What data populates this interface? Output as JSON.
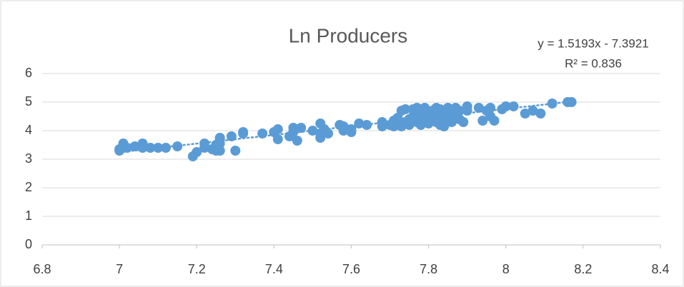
{
  "chart_data": {
    "type": "scatter",
    "title": "Ln Producers",
    "color": "#5b9bd5",
    "grid": true,
    "xlim": [
      6.8,
      8.4
    ],
    "xticks": [
      6.8,
      7,
      7.2,
      7.4,
      7.6,
      7.8,
      8,
      8.2,
      8.4
    ],
    "ylim": [
      0,
      6
    ],
    "yticks": [
      0,
      1,
      2,
      3,
      4,
      5,
      6
    ],
    "trendline": {
      "slope": 1.5193,
      "intercept": -7.3921,
      "label": "y = 1.5193x - 7.3921",
      "r2_label": "R² = 0.836"
    },
    "x": [
      7.0,
      7.0,
      7.01,
      7.01,
      7.02,
      7.04,
      7.06,
      7.06,
      7.08,
      7.1,
      7.12,
      7.15,
      7.19,
      7.2,
      7.22,
      7.22,
      7.24,
      7.25,
      7.25,
      7.26,
      7.26,
      7.26,
      7.26,
      7.29,
      7.3,
      7.32,
      7.32,
      7.37,
      7.4,
      7.41,
      7.41,
      7.44,
      7.45,
      7.45,
      7.46,
      7.47,
      7.5,
      7.52,
      7.52,
      7.52,
      7.53,
      7.54,
      7.57,
      7.58,
      7.58,
      7.6,
      7.6,
      7.62,
      7.64,
      7.68,
      7.68,
      7.7,
      7.71,
      7.71,
      7.72,
      7.72,
      7.73,
      7.73,
      7.74,
      7.74,
      7.75,
      7.75,
      7.76,
      7.76,
      7.77,
      7.77,
      7.77,
      7.78,
      7.78,
      7.78,
      7.79,
      7.79,
      7.79,
      7.8,
      7.8,
      7.81,
      7.81,
      7.82,
      7.82,
      7.83,
      7.83,
      7.83,
      7.84,
      7.84,
      7.85,
      7.85,
      7.86,
      7.86,
      7.87,
      7.87,
      7.88,
      7.88,
      7.89,
      7.9,
      7.9,
      7.93,
      7.94,
      7.95,
      7.96,
      7.96,
      7.97,
      7.99,
      8.0,
      8.02,
      8.05,
      8.07,
      8.09,
      8.12,
      8.16,
      8.17
    ],
    "values": [
      3.3,
      3.35,
      3.55,
      3.45,
      3.4,
      3.45,
      3.4,
      3.55,
      3.4,
      3.4,
      3.4,
      3.45,
      3.1,
      3.25,
      3.55,
      3.4,
      3.35,
      3.3,
      3.5,
      3.7,
      3.75,
      3.3,
      3.55,
      3.8,
      3.3,
      3.9,
      3.95,
      3.9,
      3.95,
      4.05,
      3.7,
      3.8,
      4.1,
      3.95,
      3.65,
      4.1,
      4.0,
      3.9,
      3.75,
      4.25,
      4.05,
      3.9,
      4.2,
      4.0,
      4.15,
      3.95,
      4.05,
      4.25,
      4.2,
      4.15,
      4.3,
      4.2,
      4.35,
      4.15,
      4.25,
      4.45,
      4.7,
      4.15,
      4.75,
      4.3,
      4.2,
      4.4,
      4.5,
      4.75,
      4.3,
      4.6,
      4.8,
      4.2,
      4.5,
      4.7,
      4.35,
      4.65,
      4.8,
      4.25,
      4.5,
      4.7,
      4.4,
      4.3,
      4.8,
      4.6,
      4.2,
      4.75,
      4.15,
      4.5,
      4.8,
      4.4,
      4.65,
      4.3,
      4.5,
      4.8,
      4.4,
      4.7,
      4.3,
      4.7,
      4.85,
      4.8,
      4.35,
      4.7,
      4.5,
      4.8,
      4.35,
      4.75,
      4.85,
      4.85,
      4.6,
      4.7,
      4.6,
      4.95,
      5.0,
      5.0
    ]
  }
}
